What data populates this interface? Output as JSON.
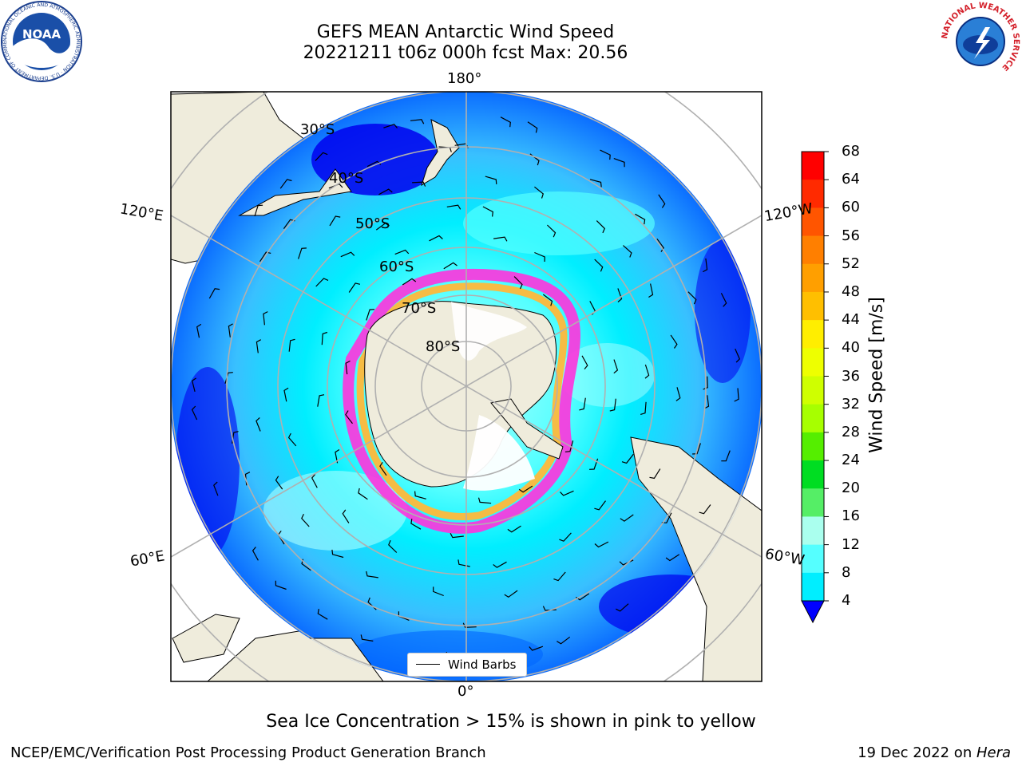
{
  "title": {
    "line1": "GEFS MEAN Antarctic Wind Speed",
    "line2": "20221211 t06z 000h fcst   Max: 20.56"
  },
  "map": {
    "projection": "south polar stereographic",
    "lon_labels": {
      "top": "180°",
      "bottom": "0°",
      "left_upper": "120°E",
      "right_upper": "120°W",
      "left_lower": "60°E",
      "right_lower": "60°W"
    },
    "lat_labels": [
      "30°S",
      "40°S",
      "50°S",
      "60°S",
      "70°S",
      "80°S"
    ],
    "legend": {
      "label": "Wind Barbs"
    },
    "colors": {
      "land": "#efecdc",
      "ocean_4_8": "#0066ff",
      "ocean_0_4": "#0000ee",
      "ocean_8_12": "#00ffff",
      "ocean_12_16": "#55f0ff",
      "ocean_16_20": "#aaffff",
      "sea_ice_edge": "#ff33dd",
      "sea_ice_inner": "#ffb83a",
      "grid": "#b0b0b0"
    }
  },
  "colorbar": {
    "label": "Wind Speed [m/s]",
    "ticks": [
      "68",
      "64",
      "60",
      "56",
      "52",
      "48",
      "44",
      "40",
      "36",
      "32",
      "28",
      "24",
      "20",
      "16",
      "12",
      "8",
      "4"
    ],
    "colors": [
      "#ff0000",
      "#ff2a00",
      "#ff5500",
      "#ff7f00",
      "#ff9f00",
      "#ffbf00",
      "#ffee00",
      "#eeff00",
      "#cfff00",
      "#a7ff00",
      "#55ee00",
      "#00dd22",
      "#55ee66",
      "#aaffee",
      "#55ffff",
      "#00eeff",
      "#0077ff"
    ],
    "underflow_color": "#0000ff"
  },
  "subtitle": "Sea Ice Concentration > 15% is shown in pink to yellow",
  "footer": {
    "left": "NCEP/EMC/Verification Post Processing Product Generation Branch",
    "right_prefix": "19 Dec 2022 on ",
    "right_italic": "Hera"
  },
  "logos": {
    "noaa_text": "NOAA",
    "noaa_ring": "NATIONAL OCEANIC AND ATMOSPHERIC ADMINISTRATION · U.S. DEPARTMENT OF COMMERCE",
    "nws_ring": "NATIONAL WEATHER SERVICE"
  }
}
